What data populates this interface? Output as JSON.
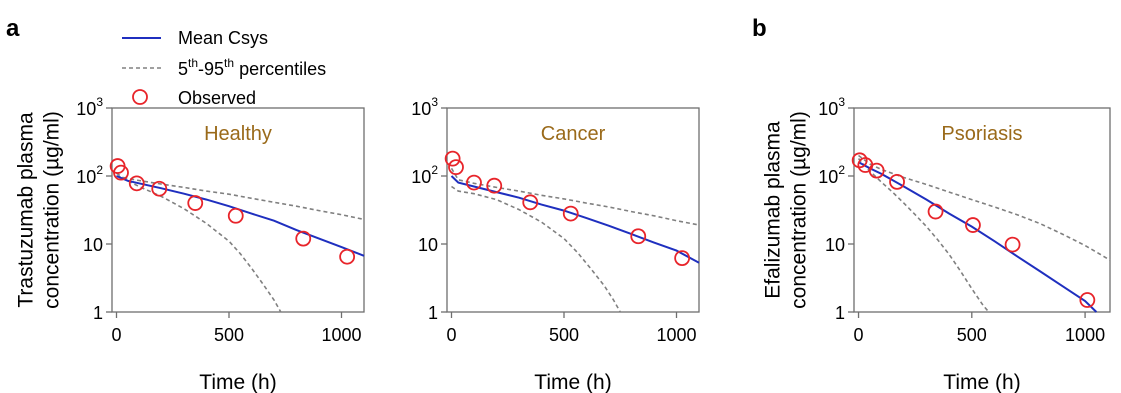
{
  "panel_labels": [
    "a",
    "b"
  ],
  "legend": {
    "mean": "Mean Csys",
    "percentile_base": "5",
    "percentile_sup1": "th",
    "percentile_dash": "-95",
    "percentile_sup2": "th",
    "percentile_tail": " percentiles",
    "observed": "Observed"
  },
  "colors": {
    "mean": "#1f2fbf",
    "percentiles": "#808080",
    "observed": "#e8242a",
    "subtitle": "#9a6a1a",
    "axis": "#6e6e6e"
  },
  "chart_data": [
    {
      "type": "line",
      "title": "Healthy",
      "xlabel": "Time (h)",
      "ylabel_line1": "Trastuzumab plasma",
      "ylabel_line2": "concentration (µg/ml)",
      "xlim": [
        -20,
        1100
      ],
      "ylim": [
        1,
        1000
      ],
      "yscale": "log",
      "x_ticks": [
        0,
        500,
        1000
      ],
      "y_ticks": [
        {
          "value": 1,
          "label": "1"
        },
        {
          "value": 10,
          "label": "10"
        },
        {
          "value": 100,
          "label": "10",
          "sup": "2"
        },
        {
          "value": 1000,
          "label": "10",
          "sup": "3"
        }
      ],
      "mean": {
        "x": [
          0,
          50,
          100,
          200,
          300,
          400,
          500,
          600,
          700,
          800,
          900,
          1000,
          1100
        ],
        "y": [
          100,
          85,
          78,
          66,
          55,
          45,
          36,
          28,
          22,
          16,
          12,
          9,
          6.7
        ]
      },
      "upper": {
        "x": [
          0,
          50,
          100,
          200,
          300,
          400,
          500,
          600,
          700,
          800,
          900,
          1000,
          1100
        ],
        "y": [
          100,
          92,
          86,
          76,
          68,
          60,
          54,
          47,
          41,
          36,
          31,
          27,
          23
        ]
      },
      "lower": {
        "x": [
          0,
          50,
          100,
          200,
          300,
          400,
          500,
          550,
          600,
          650,
          700,
          730
        ],
        "y": [
          110,
          85,
          70,
          50,
          33,
          20,
          11,
          7.2,
          4.4,
          2.6,
          1.5,
          1
        ]
      },
      "observed": {
        "x": [
          5,
          20,
          90,
          190,
          350,
          530,
          830,
          1025
        ],
        "y": [
          140,
          112,
          78,
          65,
          40,
          26,
          12,
          6.5
        ]
      }
    },
    {
      "type": "line",
      "title": "Cancer",
      "xlabel": "Time (h)",
      "ylabel_line1": "",
      "ylabel_line2": "",
      "xlim": [
        -20,
        1100
      ],
      "ylim": [
        1,
        1000
      ],
      "yscale": "log",
      "x_ticks": [
        0,
        500,
        1000
      ],
      "y_ticks": [
        {
          "value": 1,
          "label": "1"
        },
        {
          "value": 10,
          "label": "10"
        },
        {
          "value": 100,
          "label": "10",
          "sup": "2"
        },
        {
          "value": 1000,
          "label": "10",
          "sup": "3"
        }
      ],
      "mean": {
        "x": [
          0,
          30,
          100,
          200,
          300,
          400,
          500,
          600,
          700,
          800,
          900,
          1000,
          1100
        ],
        "y": [
          100,
          80,
          70,
          58,
          48,
          38,
          31,
          24,
          18.5,
          14,
          10.5,
          8,
          5.3
        ]
      },
      "upper": {
        "x": [
          0,
          30,
          100,
          200,
          300,
          400,
          500,
          600,
          700,
          800,
          900,
          1000,
          1100
        ],
        "y": [
          130,
          88,
          78,
          68,
          60,
          52,
          46,
          40,
          35,
          30,
          26,
          22,
          19
        ]
      },
      "lower": {
        "x": [
          0,
          30,
          100,
          200,
          300,
          400,
          500,
          560,
          620,
          680,
          720,
          750
        ],
        "y": [
          70,
          60,
          55,
          45,
          32,
          21,
          12,
          7.5,
          4.3,
          2.4,
          1.5,
          1
        ]
      },
      "observed": {
        "x": [
          5,
          20,
          100,
          190,
          350,
          530,
          830,
          1025
        ],
        "y": [
          180,
          135,
          80,
          72,
          41,
          28,
          13,
          6.2
        ]
      }
    },
    {
      "type": "line",
      "title": "Psoriasis",
      "xlabel": "Time (h)",
      "ylabel_line1": "Efalizumab plasma",
      "ylabel_line2": "concentration (µg/ml)",
      "xlim": [
        -20,
        1110
      ],
      "ylim": [
        1,
        1000
      ],
      "yscale": "log",
      "x_ticks": [
        0,
        500,
        1000
      ],
      "y_ticks": [
        {
          "value": 1,
          "label": "1"
        },
        {
          "value": 10,
          "label": "10"
        },
        {
          "value": 100,
          "label": "10",
          "sup": "2"
        },
        {
          "value": 1000,
          "label": "10",
          "sup": "3"
        }
      ],
      "mean": {
        "x": [
          0,
          50,
          100,
          200,
          300,
          400,
          500,
          600,
          700,
          800,
          900,
          1000,
          1050
        ],
        "y": [
          160,
          130,
          108,
          70,
          45,
          28,
          18,
          11,
          6.6,
          4,
          2.4,
          1.45,
          1
        ]
      },
      "upper": {
        "x": [
          0,
          50,
          100,
          200,
          300,
          400,
          500,
          600,
          700,
          800,
          900,
          1000,
          1110
        ],
        "y": [
          200,
          150,
          125,
          95,
          75,
          58,
          45,
          35,
          27,
          20,
          14,
          9.5,
          5.8
        ]
      },
      "lower": {
        "x": [
          0,
          50,
          100,
          150,
          200,
          250,
          300,
          350,
          400,
          450,
          500,
          550,
          575
        ],
        "y": [
          180,
          118,
          82,
          58,
          40,
          27,
          18,
          11.5,
          7,
          4,
          2.2,
          1.25,
          1
        ]
      },
      "observed": {
        "x": [
          5,
          30,
          80,
          170,
          340,
          505,
          680,
          1010
        ],
        "y": [
          170,
          145,
          120,
          82,
          30,
          19,
          9.8,
          1.5
        ]
      }
    }
  ]
}
